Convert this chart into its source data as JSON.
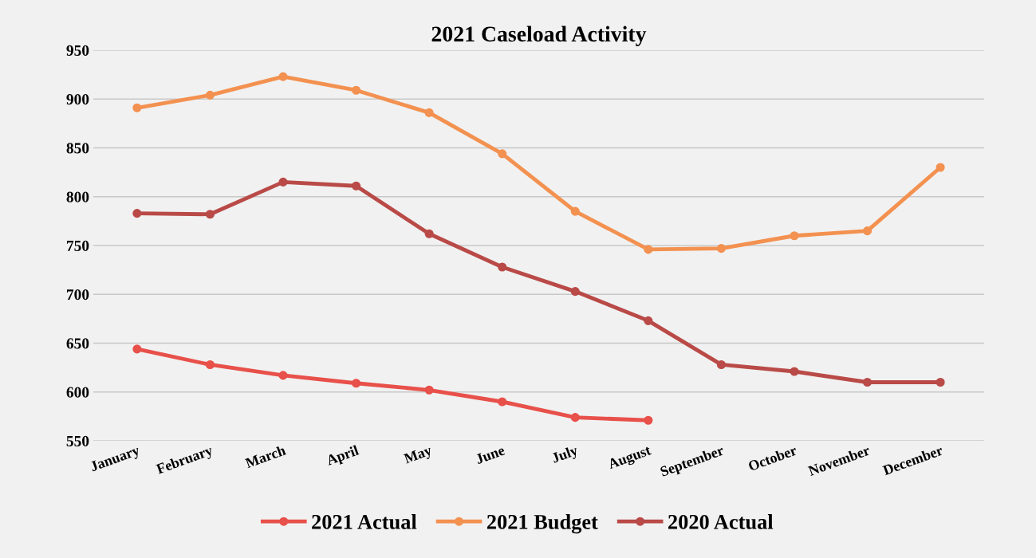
{
  "chart_data": {
    "type": "line",
    "title": "2021 Caseload Activity",
    "categories": [
      "January",
      "February",
      "March",
      "April",
      "May",
      "June",
      "July",
      "August",
      "September",
      "October",
      "November",
      "December"
    ],
    "series": [
      {
        "name": "2021 Actual",
        "color": "#e8504a",
        "values": [
          644,
          628,
          617,
          609,
          602,
          590,
          574,
          571,
          null,
          null,
          null,
          null
        ]
      },
      {
        "name": "2021 Budget",
        "color": "#f39150",
        "values": [
          891,
          904,
          923,
          909,
          886,
          844,
          785,
          746,
          747,
          760,
          765,
          830
        ]
      },
      {
        "name": "2020 Actual",
        "color": "#b94a47",
        "values": [
          783,
          782,
          815,
          811,
          762,
          728,
          703,
          673,
          628,
          621,
          610,
          610
        ]
      }
    ],
    "ylim": [
      550,
      950
    ],
    "yticks": [
      550,
      600,
      650,
      700,
      750,
      800,
      850,
      900,
      950
    ],
    "grid": "y",
    "legend": "bottom",
    "marker": "circle",
    "line_style": "solid"
  }
}
